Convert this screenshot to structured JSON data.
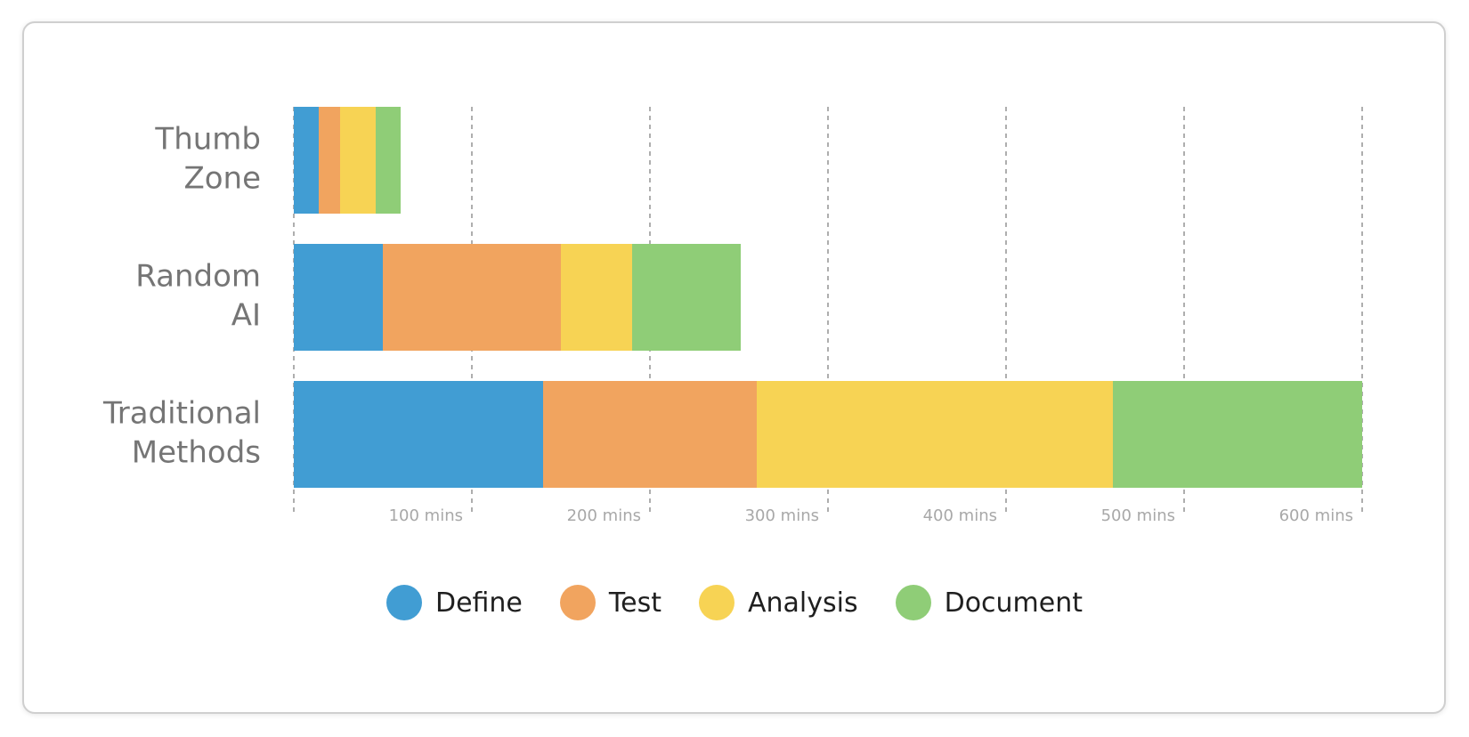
{
  "chart_data": {
    "type": "bar",
    "orientation": "horizontal",
    "stacked": true,
    "categories": [
      [
        "Thumb",
        "Zone"
      ],
      [
        "Random",
        "AI"
      ],
      [
        "Traditional",
        "Methods"
      ]
    ],
    "series": [
      {
        "name": "Define",
        "color": "#419dd3",
        "values": [
          14,
          50,
          140
        ]
      },
      {
        "name": "Test",
        "color": "#f1a45f",
        "values": [
          12,
          100,
          120
        ]
      },
      {
        "name": "Analysis",
        "color": "#f7d354",
        "values": [
          20,
          40,
          200
        ]
      },
      {
        "name": "Document",
        "color": "#8fcd77",
        "values": [
          14,
          61,
          140
        ]
      }
    ],
    "xlim": [
      0,
      600
    ],
    "xticks": [
      100,
      200,
      300,
      400,
      500,
      600
    ],
    "xtick_labels": [
      "100 mins",
      "200 mins",
      "300 mins",
      "400 mins",
      "500 mins",
      "600 mins"
    ],
    "grid": "vertical dashed",
    "legend_position": "bottom-center"
  }
}
